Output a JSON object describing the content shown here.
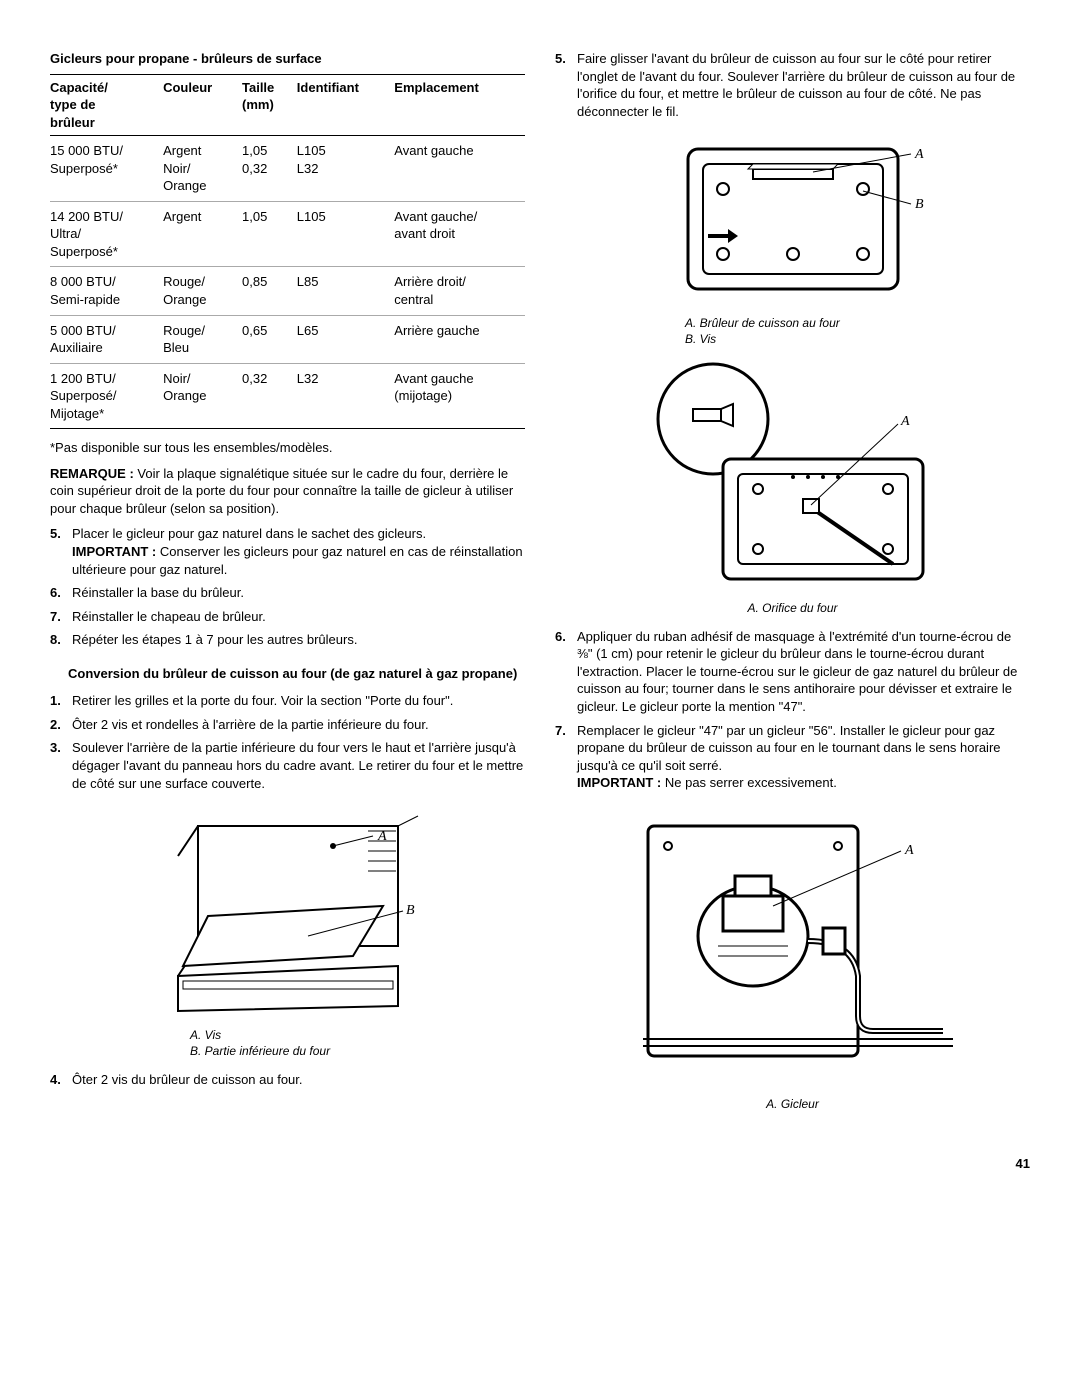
{
  "leftCol": {
    "tableTitle": "Gicleurs pour propane - brûleurs de surface",
    "headers": {
      "c1a": "Capacité/",
      "c1b": "type de",
      "c1c": "brûleur",
      "c2": "Couleur",
      "c3a": "Taille",
      "c3b": "(mm)",
      "c4": "Identifiant",
      "c5": "Emplacement"
    },
    "rows": [
      {
        "cap": "15 000 BTU/\nSuperposé*",
        "col": "Argent\nNoir/\nOrange",
        "size": "1,05\n0,32",
        "id": "L105\nL32",
        "loc": "Avant gauche"
      },
      {
        "cap": "14 200 BTU/\nUltra/\nSuperposé*",
        "col": "Argent",
        "size": "1,05",
        "id": "L105",
        "loc": "Avant gauche/\navant droit"
      },
      {
        "cap": "8 000 BTU/\nSemi-rapide",
        "col": "Rouge/\nOrange",
        "size": "0,85",
        "id": "L85",
        "loc": "Arrière droit/\ncentral"
      },
      {
        "cap": "5 000 BTU/\nAuxiliaire",
        "col": "Rouge/\nBleu",
        "size": "0,65",
        "id": "L65",
        "loc": "Arrière gauche"
      },
      {
        "cap": "1 200 BTU/\nSuperposé/\nMijotage*",
        "col": "Noir/\nOrange",
        "size": "0,32",
        "id": "L32",
        "loc": "Avant gauche\n(mijotage)"
      }
    ],
    "footnote": "*Pas disponible sur tous les ensembles/modèles.",
    "remarqueLabel": "REMARQUE :",
    "remarqueText": " Voir la plaque signalétique située sur le cadre du four, derrière le coin supérieur droit de la porte du four pour connaître la taille de gicleur à utiliser pour chaque brûleur (selon sa position).",
    "stepsA": [
      {
        "n": "5.",
        "text": "Placer le gicleur pour gaz naturel dans le sachet des gicleurs.",
        "imp": "IMPORTANT :",
        "impText": " Conserver les gicleurs pour gaz naturel en cas de réinstallation ultérieure pour gaz naturel."
      },
      {
        "n": "6.",
        "text": "Réinstaller la base du brûleur."
      },
      {
        "n": "7.",
        "text": "Réinstaller le chapeau de brûleur."
      },
      {
        "n": "8.",
        "text": "Répéter les étapes 1 à 7 pour les autres brûleurs."
      }
    ],
    "subhead": "Conversion du brûleur de cuisson au four (de gaz naturel à gaz propane)",
    "stepsB": [
      {
        "n": "1.",
        "text": "Retirer les grilles et la porte du four. Voir la section \"Porte du four\"."
      },
      {
        "n": "2.",
        "text": "Ôter 2 vis et rondelles à l'arrière de la partie inférieure du four."
      },
      {
        "n": "3.",
        "text": "Soulever l'arrière de la partie inférieure du four vers le haut et l'arrière jusqu'à dégager l'avant du panneau hors du cadre avant. Le retirer du four et le mettre de côté sur une surface couverte."
      }
    ],
    "fig1": {
      "labelA": "A",
      "labelB": "B",
      "capA": "A. Vis",
      "capB": "B. Partie inférieure du four"
    },
    "step4": {
      "n": "4.",
      "text": "Ôter 2 vis du brûleur de cuisson au four."
    }
  },
  "rightCol": {
    "step5": {
      "n": "5.",
      "text": "Faire glisser l'avant du brûleur de cuisson au four sur le côté pour retirer l'onglet de l'avant du four. Soulever l'arrière du brûleur de cuisson au four de l'orifice du four, et mettre le brûleur de cuisson au four de côté. Ne pas déconnecter le fil."
    },
    "fig2": {
      "labelA": "A",
      "labelB": "B",
      "capA": "A. Brûleur de cuisson au four",
      "capB": "B. Vis"
    },
    "fig3": {
      "labelA": "A",
      "cap": "A. Orifice du four"
    },
    "step6": {
      "n": "6.",
      "text": "Appliquer du ruban adhésif de masquage à l'extrémité d'un tourne-écrou de ⅜\" (1 cm) pour retenir le gicleur du brûleur dans le tourne-écrou durant l'extraction. Placer le tourne-écrou sur le gicleur de gaz naturel du brûleur de cuisson au four; tourner dans le sens antihoraire pour dévisser et extraire le gicleur. Le gicleur porte la mention \"47\"."
    },
    "step7": {
      "n": "7.",
      "text": "Remplacer le gicleur \"47\" par un gicleur \"56\". Installer le gicleur pour gaz propane du brûleur de cuisson au four en le tournant dans le sens horaire jusqu'à ce qu'il soit serré.",
      "imp": "IMPORTANT :",
      "impText": " Ne pas serrer excessivement."
    },
    "fig4": {
      "labelA": "A",
      "cap": "A. Gicleur"
    }
  },
  "pageNumber": "41"
}
